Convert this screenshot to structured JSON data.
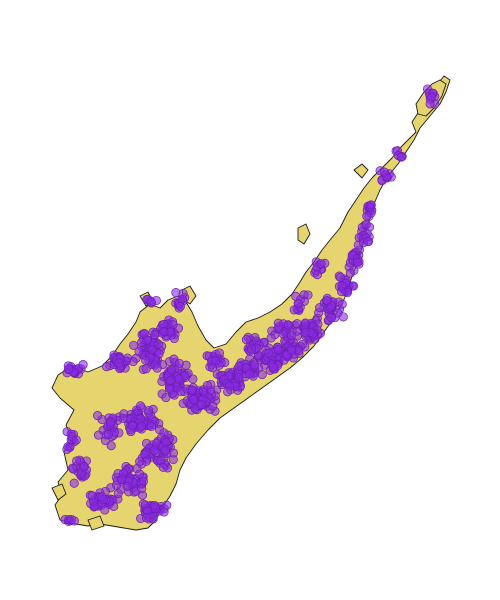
{
  "map": {
    "type": "point-occurrence-map",
    "land_color": "#e6d46e",
    "coastline_color": "#1a1a1a",
    "point_color": "#8a2be2",
    "point_opacity": 0.6,
    "background": "#ffffff"
  }
}
